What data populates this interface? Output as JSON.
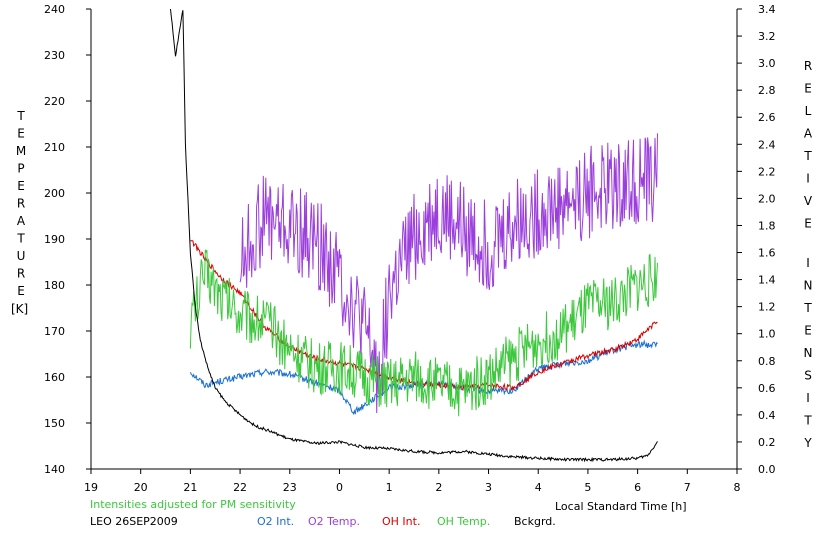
{
  "chart_data": {
    "type": "line",
    "x_axis": {
      "label": "Local Standard Time [h]",
      "range": [
        19,
        32
      ],
      "tick_values": [
        19,
        20,
        21,
        22,
        23,
        24,
        25,
        26,
        27,
        28,
        29,
        30,
        31,
        32
      ],
      "tick_labels": [
        "19",
        "20",
        "21",
        "22",
        "23",
        "0",
        "1",
        "2",
        "3",
        "4",
        "5",
        "6",
        "7",
        "8"
      ]
    },
    "y_axis_left": {
      "label": "TEMPERATURE",
      "unit_label": "[K]",
      "range": [
        140,
        240
      ],
      "ticks": [
        140,
        150,
        160,
        170,
        180,
        190,
        200,
        210,
        220,
        230,
        240
      ]
    },
    "y_axis_right": {
      "label": "RELATIVE INTENSITY",
      "range": [
        0,
        3.4
      ],
      "ticks": [
        "0.0",
        "0.2",
        "0.4",
        "0.6",
        "0.8",
        "1.0",
        "1.2",
        "1.4",
        "1.6",
        "1.8",
        "2.0",
        "2.2",
        "2.4",
        "2.6",
        "2.8",
        "3.0",
        "3.2",
        "3.4"
      ]
    },
    "note": "Intensities adjusted for PM sensitivity",
    "station_date": "LEO 26SEP2009",
    "grid": false,
    "legend_position": "bottom",
    "series": [
      {
        "name": "O2 Int.",
        "color": "#1a6fd1",
        "axis": "right",
        "x": [
          21.0,
          21.3,
          21.6,
          22.0,
          22.5,
          23.0,
          23.5,
          24.0,
          24.3,
          24.6,
          25.0,
          25.5,
          26.0,
          26.5,
          27.0,
          27.5,
          28.0,
          28.5,
          29.0,
          29.5,
          30.0,
          30.4
        ],
        "y": [
          0.72,
          0.62,
          0.65,
          0.68,
          0.72,
          0.7,
          0.64,
          0.58,
          0.42,
          0.5,
          0.6,
          0.62,
          0.63,
          0.6,
          0.57,
          0.58,
          0.74,
          0.78,
          0.8,
          0.88,
          0.92,
          0.92
        ]
      },
      {
        "name": "O2 Temp.",
        "color": "#9b3fdc",
        "axis": "left",
        "x": [
          22.0,
          22.5,
          23.0,
          23.5,
          24.0,
          24.5,
          24.8,
          25.0,
          25.5,
          26.0,
          26.5,
          27.0,
          27.5,
          28.0,
          28.5,
          29.0,
          29.5,
          30.0,
          30.4
        ],
        "y": [
          185,
          195,
          192,
          190,
          182,
          170,
          160,
          178,
          190,
          196,
          192,
          188,
          193,
          196,
          198,
          200,
          202,
          203,
          203
        ]
      },
      {
        "name": "OH Int.",
        "color": "#d80000",
        "axis": "right",
        "x": [
          21.0,
          21.3,
          21.6,
          22.0,
          22.5,
          23.0,
          23.5,
          24.0,
          24.5,
          25.0,
          25.5,
          26.0,
          26.5,
          27.0,
          27.5,
          28.0,
          28.5,
          29.0,
          29.5,
          30.0,
          30.4
        ],
        "y": [
          1.7,
          1.55,
          1.42,
          1.3,
          1.05,
          0.9,
          0.82,
          0.78,
          0.74,
          0.68,
          0.64,
          0.62,
          0.6,
          0.62,
          0.6,
          0.72,
          0.78,
          0.84,
          0.88,
          0.96,
          1.1
        ]
      },
      {
        "name": "OH Temp.",
        "color": "#3cc83c",
        "axis": "left",
        "x": [
          21.0,
          21.3,
          21.6,
          22.0,
          22.5,
          23.0,
          23.5,
          24.0,
          24.5,
          25.0,
          25.5,
          26.0,
          26.5,
          27.0,
          27.5,
          28.0,
          28.5,
          29.0,
          29.5,
          30.0,
          30.4
        ],
        "y": [
          172,
          183,
          178,
          174,
          172,
          166,
          162,
          162,
          160,
          158,
          160,
          158,
          157,
          160,
          164,
          168,
          170,
          175,
          176,
          180,
          182
        ]
      },
      {
        "name": "Bckgrd.",
        "color": "#000000",
        "axis": "right",
        "x": [
          20.6,
          20.7,
          20.8,
          20.85,
          20.9,
          21.0,
          21.1,
          21.2,
          21.35,
          21.5,
          21.7,
          22.0,
          22.3,
          22.6,
          23.0,
          23.5,
          24.0,
          24.5,
          25.0,
          25.5,
          26.0,
          26.5,
          27.0,
          27.5,
          28.0,
          28.5,
          29.0,
          29.5,
          30.0,
          30.2,
          30.4
        ],
        "y": [
          3.4,
          3.05,
          3.28,
          3.4,
          2.4,
          1.6,
          1.2,
          0.95,
          0.75,
          0.6,
          0.5,
          0.4,
          0.32,
          0.28,
          0.22,
          0.19,
          0.2,
          0.16,
          0.15,
          0.13,
          0.12,
          0.13,
          0.11,
          0.09,
          0.08,
          0.07,
          0.07,
          0.07,
          0.08,
          0.1,
          0.2
        ]
      }
    ]
  }
}
